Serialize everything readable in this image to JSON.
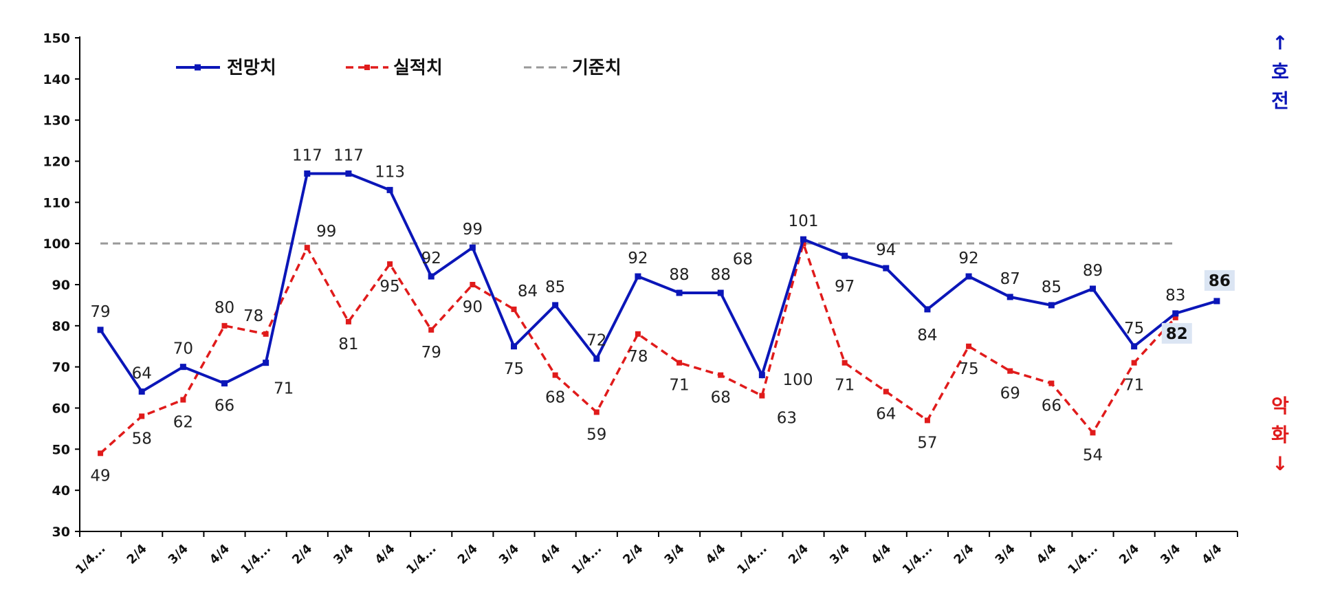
{
  "colors": {
    "forecast": "#0b16b8",
    "actual": "#e01b1b",
    "baseline": "#999999",
    "axis": "#000000",
    "highlight_bg": "#dbe5f3"
  },
  "chart_data": {
    "type": "line",
    "categories": [
      "1/4...",
      "2/4",
      "3/4",
      "4/4",
      "1/4...",
      "2/4",
      "3/4",
      "4/4",
      "1/4...",
      "2/4",
      "3/4",
      "4/4",
      "1/4...",
      "2/4",
      "3/4",
      "4/4",
      "1/4...",
      "2/4",
      "3/4",
      "4/4",
      "1/4...",
      "2/4",
      "3/4",
      "4/4",
      "1/4...",
      "2/4",
      "3/4",
      "4/4"
    ],
    "series": [
      {
        "name": "전망치",
        "values": [
          79,
          64,
          70,
          66,
          71,
          117,
          117,
          113,
          92,
          99,
          75,
          85,
          72,
          92,
          88,
          88,
          68,
          101,
          97,
          94,
          84,
          92,
          87,
          85,
          89,
          75,
          83,
          86
        ]
      },
      {
        "name": "실적치",
        "values": [
          49,
          58,
          62,
          80,
          78,
          99,
          81,
          95,
          79,
          90,
          84,
          68,
          59,
          78,
          71,
          68,
          63,
          100,
          71,
          64,
          57,
          75,
          69,
          66,
          54,
          71,
          82,
          null
        ]
      },
      {
        "name": "기준치",
        "values": [
          100,
          100,
          100,
          100,
          100,
          100,
          100,
          100,
          100,
          100,
          100,
          100,
          100,
          100,
          100,
          100,
          100,
          100,
          100,
          100,
          100,
          100,
          100,
          100,
          100,
          100,
          100,
          null
        ]
      }
    ],
    "ylim": [
      30,
      150
    ],
    "yticks": [
      30,
      40,
      50,
      60,
      70,
      80,
      90,
      100,
      110,
      120,
      130,
      140,
      150
    ],
    "legend_position": "top-left",
    "grid": false,
    "xlabel": "",
    "ylabel": "",
    "title": ""
  },
  "side_labels": {
    "up_arrow": "↑",
    "up_text": [
      "호",
      "전"
    ],
    "down_text": [
      "악",
      "화"
    ],
    "down_arrow": "↓"
  }
}
